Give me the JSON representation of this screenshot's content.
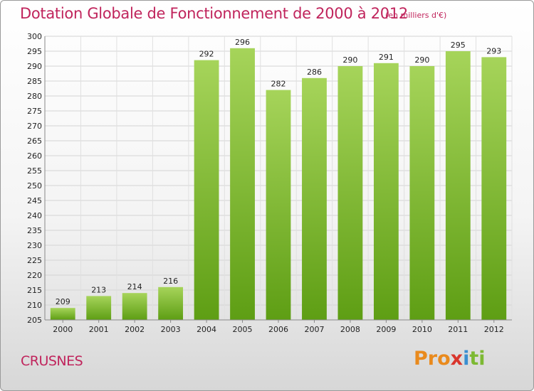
{
  "header": {
    "title": "Dotation Globale de Fonctionnement de 2000 à 2012",
    "subtitle": "(en milliers d'€)"
  },
  "footer": {
    "commune": "CRUSNES",
    "logo_parts": [
      "Pro",
      "x",
      "i",
      "ti"
    ]
  },
  "colors": {
    "accent": "#c0245c",
    "bar_top": "#a6d45a",
    "bar_bottom": "#5e9e14"
  },
  "chart_data": {
    "type": "bar",
    "title": "Dotation Globale de Fonctionnement de 2000 à 2012",
    "subtitle": "(en milliers d'€)",
    "categories": [
      "2000",
      "2001",
      "2002",
      "2003",
      "2004",
      "2005",
      "2006",
      "2007",
      "2008",
      "2009",
      "2010",
      "2011",
      "2012"
    ],
    "values": [
      209,
      213,
      214,
      216,
      292,
      296,
      282,
      286,
      290,
      291,
      290,
      295,
      293
    ],
    "ylim": [
      205,
      300
    ],
    "ytick_step": 5,
    "grid": true,
    "legend": "none"
  }
}
